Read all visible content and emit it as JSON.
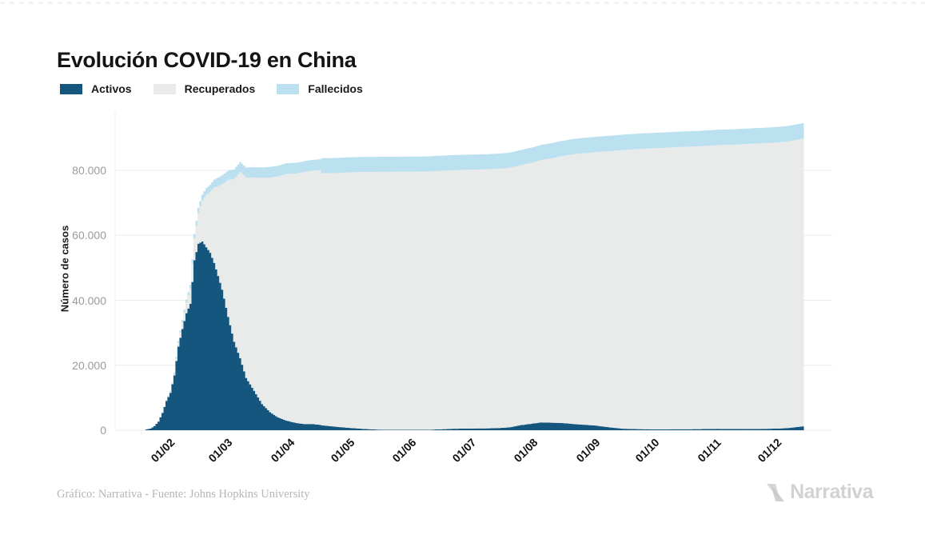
{
  "title": "Evolución COVID-19 en China",
  "footer": {
    "source": "Gráfico: Narrativa - Fuente: Johns Hopkins University",
    "brand": "Narrativa"
  },
  "chart_data": {
    "type": "bar",
    "stacked": true,
    "title": "Evolución COVID-19 en China",
    "xlabel": "",
    "ylabel": "Número de casos",
    "ylim": [
      0,
      98000
    ],
    "grid": true,
    "grid_color": "#ececec",
    "legend_position": "top-left",
    "stack_order": "bottom-to-top: Activos, Recuperados, Fallecidos",
    "yticks": {
      "values": [
        0,
        20000,
        40000,
        60000,
        80000
      ],
      "labels": [
        "0",
        "20.000",
        "40.000",
        "60.000",
        "80.000"
      ]
    },
    "xticks": {
      "dates": [
        "2020-02-01",
        "2020-03-01",
        "2020-04-01",
        "2020-05-01",
        "2020-06-01",
        "2020-07-01",
        "2020-08-01",
        "2020-09-01",
        "2020-10-01",
        "2020-11-01",
        "2020-12-01"
      ],
      "labels": [
        "01/02",
        "01/03",
        "01/04",
        "01/05",
        "01/06",
        "01/07",
        "01/08",
        "01/09",
        "01/10",
        "01/11",
        "01/12"
      ]
    },
    "x_dates": [
      "2020-01-20",
      "2020-01-22",
      "2020-01-24",
      "2020-01-26",
      "2020-01-28",
      "2020-01-30",
      "2020-02-01",
      "2020-02-03",
      "2020-02-05",
      "2020-02-07",
      "2020-02-09",
      "2020-02-11",
      "2020-02-13",
      "2020-02-15",
      "2020-02-17",
      "2020-02-19",
      "2020-02-21",
      "2020-02-23",
      "2020-02-25",
      "2020-02-27",
      "2020-03-01",
      "2020-03-04",
      "2020-03-07",
      "2020-03-10",
      "2020-03-14",
      "2020-03-18",
      "2020-03-22",
      "2020-03-26",
      "2020-03-30",
      "2020-04-04",
      "2020-04-08",
      "2020-04-12",
      "2020-04-16",
      "2020-04-17",
      "2020-04-24",
      "2020-05-01",
      "2020-05-08",
      "2020-05-15",
      "2020-05-22",
      "2020-06-01",
      "2020-06-08",
      "2020-06-15",
      "2020-06-22",
      "2020-07-01",
      "2020-07-08",
      "2020-07-15",
      "2020-07-20",
      "2020-07-25",
      "2020-08-01",
      "2020-08-05",
      "2020-08-10",
      "2020-08-15",
      "2020-08-22",
      "2020-09-01",
      "2020-09-08",
      "2020-09-15",
      "2020-09-22",
      "2020-10-01",
      "2020-10-08",
      "2020-10-15",
      "2020-10-22",
      "2020-11-01",
      "2020-11-08",
      "2020-11-15",
      "2020-11-22",
      "2020-12-01",
      "2020-12-05",
      "2020-12-10",
      "2020-12-14"
    ],
    "series": [
      {
        "name": "Activos",
        "color": "#15567e",
        "values": [
          260,
          503,
          1297,
          2633,
          5306,
          8977,
          11515,
          16848,
          25724,
          31178,
          36043,
          38928,
          52321,
          57416,
          58104,
          56328,
          54628,
          51519,
          47469,
          43275,
          34897,
          27200,
          22177,
          16104,
          12124,
          8056,
          5549,
          3947,
          2967,
          2246,
          1905,
          1897,
          1656,
          1500,
          1066,
          700,
          400,
          180,
          130,
          135,
          110,
          280,
          450,
          530,
          560,
          680,
          900,
          1500,
          2090,
          2400,
          2320,
          2235,
          1870,
          1440,
          900,
          465,
          340,
          272,
          290,
          313,
          330,
          420,
          400,
          377,
          390,
          510,
          600,
          900,
          1200
        ]
      },
      {
        "name": "Recuperados",
        "color": "#e9eaea",
        "values": [
          25,
          28,
          38,
          49,
          103,
          171,
          284,
          472,
          1153,
          2050,
          3283,
          4740,
          6723,
          9419,
          12552,
          16121,
          18704,
          23187,
          27650,
          32495,
          42162,
          50133,
          57320,
          61644,
          65660,
          69601,
          72244,
          74181,
          75923,
          76751,
          77567,
          77956,
          78401,
          77600,
          78109,
          78680,
          79110,
          79350,
          79417,
          79460,
          79520,
          79560,
          79610,
          79680,
          79760,
          79840,
          79900,
          80000,
          80410,
          80790,
          81360,
          82115,
          83140,
          84160,
          85000,
          85790,
          86220,
          86530,
          86710,
          86915,
          87050,
          87320,
          87480,
          87720,
          87900,
          88080,
          88180,
          88380,
          88550
        ]
      },
      {
        "name": "Fallecidos",
        "color": "#bbe1f0",
        "values": [
          6,
          17,
          41,
          80,
          131,
          213,
          259,
          426,
          563,
          722,
          909,
          1113,
          1370,
          1665,
          1873,
          2127,
          2239,
          2444,
          2666,
          2744,
          2873,
          2984,
          3085,
          3139,
          3193,
          3237,
          3274,
          3292,
          3308,
          3330,
          3337,
          3343,
          3346,
          4636,
          4636,
          4637,
          4637,
          4638,
          4638,
          4638,
          4638,
          4638,
          4639,
          4641,
          4644,
          4644,
          4645,
          4650,
          4660,
          4666,
          4678,
          4697,
          4711,
          4727,
          4732,
          4737,
          4741,
          4746,
          4746,
          4746,
          4746,
          4746,
          4749,
          4749,
          4749,
          4751,
          4755,
          4759,
          4765
        ]
      }
    ]
  }
}
